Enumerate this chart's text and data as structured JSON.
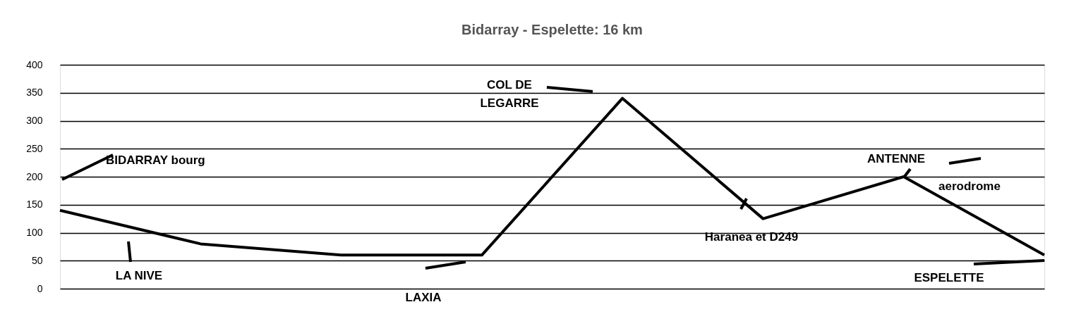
{
  "chart_data": {
    "type": "line",
    "title": "Bidarray - Espelette: 16 km",
    "categories": [
      null,
      null,
      null,
      null,
      null,
      null,
      null,
      null
    ],
    "values": [
      140,
      80,
      60,
      60,
      340,
      125,
      200,
      60
    ],
    "color": "#000000",
    "ylim": [
      0,
      400
    ],
    "yticks": [
      0,
      50,
      100,
      150,
      200,
      250,
      300,
      350,
      400
    ],
    "grid": "y",
    "tick_labels": "y",
    "marker": "none",
    "line_style": "solid",
    "annotations": [
      "BIDARRAY bourg",
      "LA NIVE",
      "LAXIA",
      "COL DE\nLEGARRE",
      "Haranea et D249",
      "ANTENNE",
      "aerodrome",
      "ESPELETTE"
    ]
  }
}
